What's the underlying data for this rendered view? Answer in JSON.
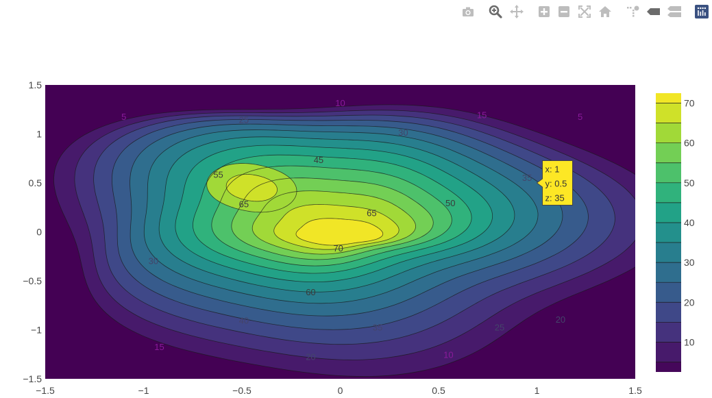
{
  "toolbar": {
    "icons": [
      "camera-icon",
      "zoom-icon",
      "pan-icon",
      "zoom-in-icon",
      "zoom-out-icon",
      "autoscale-icon",
      "reset-axes-icon",
      "spike-lines-icon",
      "hover-closest-icon",
      "hover-compare-icon",
      "plotly-logo-icon"
    ],
    "accent": "#7f7f7f"
  },
  "chart_data": {
    "type": "contour",
    "colorscale": "viridis",
    "xlim": [
      -1.5,
      1.5
    ],
    "ylim": [
      -1.5,
      1.5
    ],
    "x_ticks": [
      "−1.5",
      "−1",
      "−0.5",
      "0",
      "0.5",
      "1",
      "1.5"
    ],
    "x_tick_values": [
      -1.5,
      -1,
      -0.5,
      0,
      0.5,
      1,
      1.5
    ],
    "y_ticks": [
      "1.5",
      "1",
      "0.5",
      "0",
      "−0.5",
      "−1",
      "−1.5"
    ],
    "y_tick_values": [
      1.5,
      1,
      0.5,
      0,
      -0.5,
      -1,
      -1.5
    ],
    "z_range": [
      2.5,
      72.5
    ],
    "contour_levels": [
      5,
      10,
      15,
      20,
      25,
      30,
      35,
      40,
      45,
      50,
      55,
      60,
      65,
      70
    ],
    "peaks": [
      {
        "x": 0.02,
        "y": 0.0,
        "z": 72.5
      },
      {
        "x": -0.45,
        "y": 0.45,
        "z": 66
      }
    ],
    "colorbar": {
      "ticks": [
        "70",
        "60",
        "50",
        "40",
        "30",
        "20",
        "10"
      ],
      "tick_values": [
        70,
        60,
        50,
        40,
        30,
        20,
        10
      ]
    },
    "contour_labels": [
      {
        "text": "5",
        "x": -1.1,
        "y": 1.17
      },
      {
        "text": "10",
        "x": 0.0,
        "y": 1.31
      },
      {
        "text": "15",
        "x": 0.72,
        "y": 1.19
      },
      {
        "text": "5",
        "x": 1.22,
        "y": 1.17
      },
      {
        "text": "25",
        "x": -0.49,
        "y": 1.14
      },
      {
        "text": "30",
        "x": 0.32,
        "y": 1.01
      },
      {
        "text": "45",
        "x": -0.11,
        "y": 0.73
      },
      {
        "text": "55",
        "x": -0.62,
        "y": 0.58
      },
      {
        "text": "35",
        "x": 0.95,
        "y": 0.55
      },
      {
        "text": "50",
        "x": 0.56,
        "y": 0.29
      },
      {
        "text": "65",
        "x": -0.49,
        "y": 0.28
      },
      {
        "text": "65",
        "x": 0.16,
        "y": 0.19
      },
      {
        "text": "70",
        "x": -0.01,
        "y": -0.17
      },
      {
        "text": "30",
        "x": -0.95,
        "y": -0.3
      },
      {
        "text": "60",
        "x": -0.15,
        "y": -0.62
      },
      {
        "text": "40",
        "x": -0.49,
        "y": -0.91
      },
      {
        "text": "35",
        "x": 0.19,
        "y": -0.98
      },
      {
        "text": "25",
        "x": 0.81,
        "y": -0.98
      },
      {
        "text": "20",
        "x": 1.12,
        "y": -0.9
      },
      {
        "text": "15",
        "x": -0.92,
        "y": -1.18
      },
      {
        "text": "20",
        "x": -0.15,
        "y": -1.28
      },
      {
        "text": "10",
        "x": 0.55,
        "y": -1.26
      }
    ],
    "hover": {
      "x_text": "x: 1",
      "y_text": "y: 0.5",
      "z_text": "z: 35",
      "x": 1,
      "y": 0.5,
      "z": 35
    }
  }
}
